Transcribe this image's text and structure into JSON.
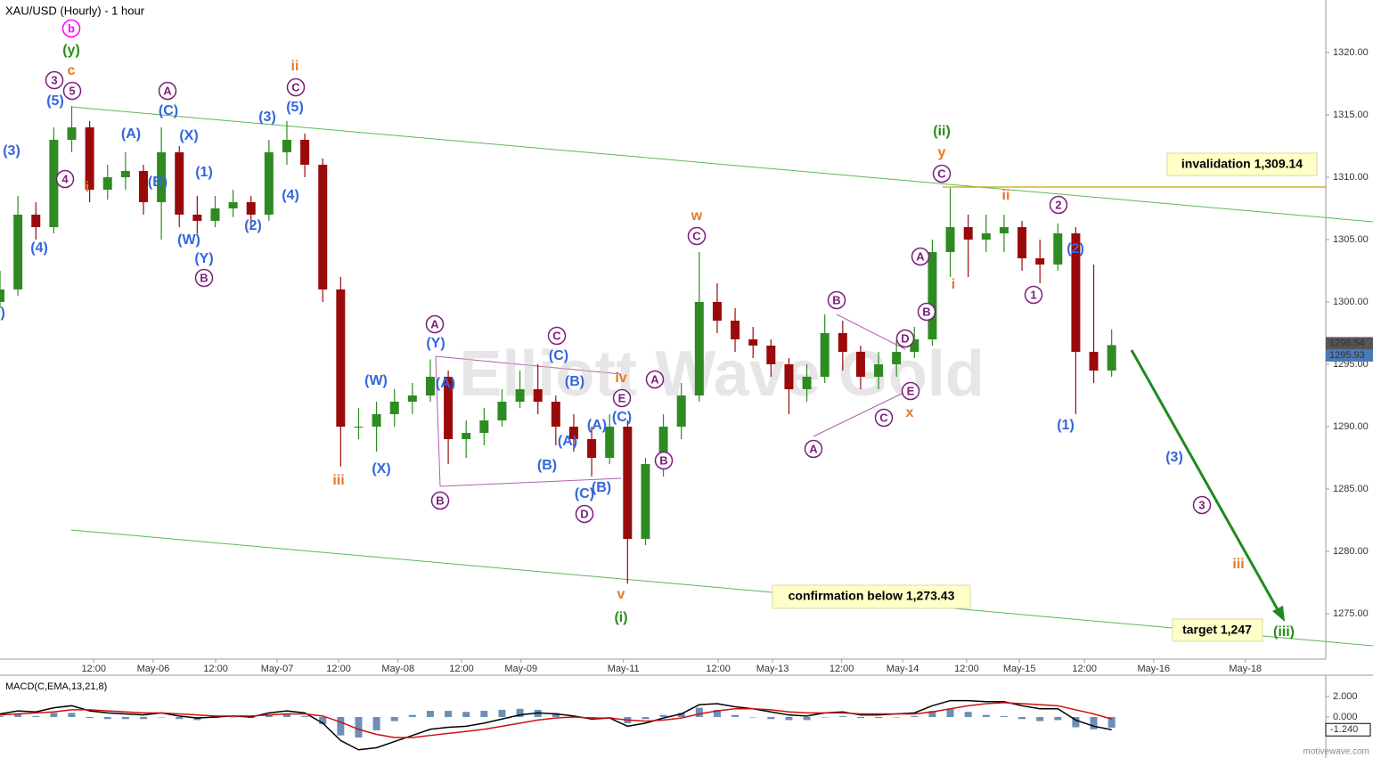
{
  "chart_data": [
    {
      "type": "candlestick",
      "title": "XAU/USD (Hourly) - 1 hour",
      "watermark": "Elliott Wave Gold",
      "up_color": "#2e8b22",
      "down_color": "#9b0a0a",
      "x": [
        0,
        3.5,
        7,
        10.5,
        14,
        17.5,
        21,
        24.5,
        28,
        31.5,
        35,
        38.5,
        42,
        45.5,
        49,
        52.5,
        56,
        59.5,
        63,
        66.5,
        70,
        73.5,
        77,
        80.5,
        84,
        87.5,
        91,
        94.5,
        98,
        101.5,
        105,
        108.5,
        112,
        115.5,
        119,
        122.5,
        126,
        129.5,
        133,
        136.5,
        140,
        143.5,
        147,
        150.5,
        154,
        157.5,
        161,
        164.5,
        168,
        171.5,
        175,
        178.5,
        182,
        185.5,
        189,
        192.5,
        196,
        199.5,
        203,
        206.5,
        210,
        213.5,
        217
      ],
      "open": [
        1300,
        1301,
        1307,
        1306,
        1313,
        1314,
        1309,
        1310,
        1310.5,
        1308,
        1312,
        1307,
        1306.5,
        1307.5,
        1308,
        1307,
        1312,
        1313,
        1311,
        1301,
        1290,
        1290,
        1291,
        1292,
        1292.5,
        1294,
        1289,
        1289.5,
        1290.5,
        1292,
        1293,
        1292,
        1290,
        1289,
        1287.5,
        1290,
        1281,
        1287,
        1290,
        1292.5,
        1300,
        1298.5,
        1297,
        1296.5,
        1295,
        1293,
        1294,
        1297.5,
        1296,
        1294,
        1295,
        1296,
        1297,
        1304,
        1306,
        1305,
        1305.5,
        1306,
        1303.5,
        1303,
        1305.5,
        1296,
        1294.5
      ],
      "high": [
        1302.5,
        1308.5,
        1308,
        1314,
        1315.7,
        1314.5,
        1311,
        1312,
        1311,
        1314,
        1312.5,
        1308.5,
        1308.5,
        1309,
        1308.5,
        1313,
        1314.5,
        1313.5,
        1311.5,
        1302,
        1291.5,
        1292,
        1293,
        1293.5,
        1295.4,
        1294.5,
        1290.5,
        1291.5,
        1293,
        1294.5,
        1295,
        1292.5,
        1291,
        1290,
        1291,
        1290.5,
        1287.5,
        1291,
        1293.5,
        1304,
        1301.5,
        1299.5,
        1298,
        1297,
        1295.5,
        1295,
        1299,
        1298.5,
        1296.5,
        1296,
        1297,
        1298,
        1305,
        1309.14,
        1307,
        1307,
        1307,
        1306.5,
        1305,
        1306.3,
        1306,
        1303,
        1297.8
      ],
      "low": [
        1299.5,
        1300.5,
        1305,
        1305.5,
        1312,
        1308,
        1308.2,
        1309,
        1307,
        1305,
        1306,
        1305.5,
        1306,
        1306.8,
        1306,
        1306.5,
        1311,
        1310,
        1300,
        1286.8,
        1289,
        1288,
        1290,
        1291,
        1292,
        1287,
        1287.5,
        1288.5,
        1290,
        1291.5,
        1291,
        1288.5,
        1288,
        1286,
        1287,
        1277.4,
        1280.5,
        1286,
        1289,
        1292,
        1297.5,
        1296,
        1295.5,
        1294,
        1291,
        1292,
        1293.5,
        1294.5,
        1293,
        1293,
        1294,
        1295.5,
        1296.5,
        1302,
        1302,
        1304,
        1304,
        1302.5,
        1301.5,
        1302.5,
        1291,
        1293.5,
        1294
      ],
      "close": [
        1301,
        1307,
        1306,
        1313,
        1314,
        1309,
        1310,
        1310.5,
        1308,
        1312,
        1307,
        1306.5,
        1307.5,
        1308,
        1307,
        1312,
        1313,
        1311,
        1301,
        1290,
        1290,
        1291,
        1292,
        1292.5,
        1294,
        1289,
        1289.5,
        1290.5,
        1292,
        1293,
        1292,
        1290,
        1289,
        1287.5,
        1290,
        1281,
        1287,
        1290,
        1292.5,
        1300,
        1298.5,
        1297,
        1296.5,
        1295,
        1293,
        1294,
        1297.5,
        1296,
        1294,
        1295,
        1296,
        1297,
        1304,
        1306,
        1305,
        1305.5,
        1306,
        1303.5,
        1303,
        1305.5,
        1296,
        1294.5,
        1296.54
      ],
      "xlim": [
        0,
        258.8
      ],
      "xticks": [
        {
          "value": 18.3,
          "label": "12:00"
        },
        {
          "value": 29.9,
          "label": "May-06"
        },
        {
          "value": 42.1,
          "label": "12:00"
        },
        {
          "value": 54.1,
          "label": "May-07"
        },
        {
          "value": 66.1,
          "label": "12:00"
        },
        {
          "value": 77.7,
          "label": "May-08"
        },
        {
          "value": 90.1,
          "label": "12:00"
        },
        {
          "value": 101.7,
          "label": "May-09"
        },
        {
          "value": 121.7,
          "label": "May-11"
        },
        {
          "value": 140.2,
          "label": "12:00"
        },
        {
          "value": 150.8,
          "label": "May-13"
        },
        {
          "value": 164.3,
          "label": "12:00"
        },
        {
          "value": 176.2,
          "label": "May-14"
        },
        {
          "value": 188.7,
          "label": "12:00"
        },
        {
          "value": 199,
          "label": "May-15"
        },
        {
          "value": 211.7,
          "label": "12:00"
        },
        {
          "value": 225.2,
          "label": "May-16"
        },
        {
          "value": 243.1,
          "label": "May-18"
        }
      ],
      "ylim": [
        1271.36,
        1324.21
      ],
      "yticks": [
        {
          "value": 1275,
          "label": "1275.00"
        },
        {
          "value": 1280,
          "label": "1280.00"
        },
        {
          "value": 1285,
          "label": "1285.00"
        },
        {
          "value": 1290,
          "label": "1290.00"
        },
        {
          "value": 1295,
          "label": "1295.00"
        },
        {
          "value": 1300,
          "label": "1300.00"
        },
        {
          "value": 1305,
          "label": "1305.00"
        },
        {
          "value": 1310,
          "label": "1310.00"
        },
        {
          "value": 1315,
          "label": "1315.00"
        },
        {
          "value": 1320,
          "label": "1320.00"
        }
      ],
      "markers": [
        {
          "value": 1296.54,
          "color": "#555555"
        },
        {
          "value": 1295.93,
          "color": "#4a7ab5"
        }
      ],
      "boxes": [
        "invalidation 1,309.14",
        "confirmation below 1,273.43",
        "target 1,247"
      ],
      "annotations": [
        {
          "text": "b",
          "color": "#ff00ff",
          "circled": true
        },
        {
          "text": "(y)",
          "color": "#2a8a1a",
          "circled": false
        },
        {
          "text": "c",
          "color": "#e87722",
          "circled": false
        },
        {
          "text": "3",
          "color": "#7a1f7a",
          "circled": true
        },
        {
          "text": "5",
          "color": "#7a1f7a",
          "circled": true
        },
        {
          "text": "(5)",
          "color": "#3366dd",
          "circled": false
        },
        {
          "text": "(3)",
          "color": "#3366dd",
          "circled": false
        },
        {
          "text": "4",
          "color": "#7a1f7a",
          "circled": true
        },
        {
          "text": "i",
          "color": "#e87722",
          "circled": false
        },
        {
          "text": "(4)",
          "color": "#3366dd",
          "circled": false
        },
        {
          "text": "(A)",
          "color": "#3366dd",
          "circled": false
        },
        {
          "text": "(B)",
          "color": "#3366dd",
          "circled": false
        },
        {
          "text": "A",
          "color": "#7a1f7a",
          "circled": true
        },
        {
          "text": "(C)",
          "color": "#3366dd",
          "circled": false
        },
        {
          "text": "(X)",
          "color": "#3366dd",
          "circled": false
        },
        {
          "text": "(1)",
          "color": "#3366dd",
          "circled": false
        },
        {
          "text": "(W)",
          "color": "#3366dd",
          "circled": false
        },
        {
          "text": "(Y)",
          "color": "#3366dd",
          "circled": false
        },
        {
          "text": "B",
          "color": "#7a1f7a",
          "circled": true
        },
        {
          "text": "(3)",
          "color": "#3366dd",
          "circled": false
        },
        {
          "text": "ii",
          "color": "#e87722",
          "circled": false
        },
        {
          "text": "C",
          "color": "#7a1f7a",
          "circled": true
        },
        {
          "text": "(5)",
          "color": "#3366dd",
          "circled": false
        },
        {
          "text": "(4)",
          "color": "#3366dd",
          "circled": false
        },
        {
          "text": "(2)",
          "color": "#3366dd",
          "circled": false
        },
        {
          "text": "iii",
          "color": "#e87722",
          "circled": false
        },
        {
          "text": "(W)",
          "color": "#3366dd",
          "circled": false
        },
        {
          "text": "(X)",
          "color": "#3366dd",
          "circled": false
        },
        {
          "text": "A",
          "color": "#7a1f7a",
          "circled": true
        },
        {
          "text": "(Y)",
          "color": "#3366dd",
          "circled": false
        },
        {
          "text": "(A)",
          "color": "#3366dd",
          "circled": false
        },
        {
          "text": "B",
          "color": "#7a1f7a",
          "circled": true
        },
        {
          "text": "C",
          "color": "#7a1f7a",
          "circled": true
        },
        {
          "text": "(C)",
          "color": "#3366dd",
          "circled": false
        },
        {
          "text": "(B)",
          "color": "#3366dd",
          "circled": false
        },
        {
          "text": "(A)",
          "color": "#3366dd",
          "circled": false
        },
        {
          "text": "(B)",
          "color": "#3366dd",
          "circled": false
        },
        {
          "text": "(A)",
          "color": "#3366dd",
          "circled": false
        },
        {
          "text": "(C)",
          "color": "#3366dd",
          "circled": false
        },
        {
          "text": "(B)",
          "color": "#3366dd",
          "circled": false
        },
        {
          "text": "D",
          "color": "#7a1f7a",
          "circled": true
        },
        {
          "text": "iv",
          "color": "#e87722",
          "circled": false
        },
        {
          "text": "E",
          "color": "#7a1f7a",
          "circled": true
        },
        {
          "text": "(C)",
          "color": "#3366dd",
          "circled": false
        },
        {
          "text": "A",
          "color": "#7a1f7a",
          "circled": true
        },
        {
          "text": "B",
          "color": "#7a1f7a",
          "circled": true
        },
        {
          "text": "v",
          "color": "#e87722",
          "circled": false
        },
        {
          "text": "(i)",
          "color": "#2a8a1a",
          "circled": false
        },
        {
          "text": "w",
          "color": "#e87722",
          "circled": false
        },
        {
          "text": "C",
          "color": "#7a1f7a",
          "circled": true
        },
        {
          "text": "B",
          "color": "#7a1f7a",
          "circled": true
        },
        {
          "text": "A",
          "color": "#7a1f7a",
          "circled": true
        },
        {
          "text": "C",
          "color": "#7a1f7a",
          "circled": true
        },
        {
          "text": "D",
          "color": "#7a1f7a",
          "circled": true
        },
        {
          "text": "E",
          "color": "#7a1f7a",
          "circled": true
        },
        {
          "text": "x",
          "color": "#e87722",
          "circled": false
        },
        {
          "text": "A",
          "color": "#7a1f7a",
          "circled": true
        },
        {
          "text": "B",
          "color": "#7a1f7a",
          "circled": true
        },
        {
          "text": "i",
          "color": "#e87722",
          "circled": false
        },
        {
          "text": "(ii)",
          "color": "#2a8a1a",
          "circled": false
        },
        {
          "text": "y",
          "color": "#e87722",
          "circled": false
        },
        {
          "text": "C",
          "color": "#7a1f7a",
          "circled": true
        },
        {
          "text": "ii",
          "color": "#e87722",
          "circled": false
        },
        {
          "text": "2",
          "color": "#7a1f7a",
          "circled": true
        },
        {
          "text": "(2)",
          "color": "#3366dd",
          "circled": false
        },
        {
          "text": "1",
          "color": "#7a1f7a",
          "circled": true
        },
        {
          "text": "(1)",
          "color": "#3366dd",
          "circled": false
        },
        {
          "text": "(3)",
          "color": "#3366dd",
          "circled": false
        },
        {
          "text": "3",
          "color": "#7a1f7a",
          "circled": true
        },
        {
          "text": "iii",
          "color": "#e87722",
          "circled": false
        },
        {
          "text": "(iii)",
          "color": "#2a8a1a",
          "circled": false
        },
        {
          "text": "(2)",
          "color": "#3366dd",
          "circled": false
        }
      ]
    },
    {
      "type": "macd",
      "title": "MACD(C,EMA,13,21,8)",
      "x": [
        0,
        3.5,
        7,
        10.5,
        14,
        17.5,
        21,
        24.5,
        28,
        31.5,
        35,
        38.5,
        42,
        45.5,
        49,
        52.5,
        56,
        59.5,
        63,
        66.5,
        70,
        73.5,
        77,
        80.5,
        84,
        87.5,
        91,
        94.5,
        98,
        101.5,
        105,
        108.5,
        112,
        115.5,
        119,
        122.5,
        126,
        129.5,
        133,
        136.5,
        140,
        143.5,
        147,
        150.5,
        154,
        157.5,
        161,
        164.5,
        168,
        171.5,
        175,
        178.5,
        182,
        185.5,
        189,
        192.5,
        196,
        199.5,
        203,
        206.5,
        210,
        213.5,
        217
      ],
      "series": [
        {
          "type": "bar",
          "color": "#6a8fb8",
          "values": [
            0.1,
            0.3,
            0.1,
            0.4,
            0.4,
            -0.1,
            -0.2,
            -0.2,
            -0.2,
            0,
            -0.2,
            -0.3,
            -0.1,
            0,
            -0.1,
            0.2,
            0.3,
            0.1,
            -0.7,
            -1.8,
            -2.0,
            -1.3,
            -0.4,
            0.2,
            0.6,
            0.6,
            0.5,
            0.6,
            0.7,
            0.8,
            0.7,
            0.4,
            0.1,
            -0.1,
            0,
            -0.6,
            -0.2,
            0.2,
            0.4,
            0.9,
            0.7,
            0.2,
            0,
            -0.2,
            -0.3,
            -0.3,
            0,
            0.1,
            -0.1,
            -0.1,
            0,
            0.1,
            0.6,
            0.8,
            0.5,
            0.2,
            0.1,
            -0.2,
            -0.4,
            -0.3,
            -1.0,
            -1.2,
            -1.04
          ]
        },
        {
          "type": "line",
          "color": "#000000",
          "values": [
            0.3,
            0.6,
            0.5,
            0.9,
            1.1,
            0.6,
            0.4,
            0.3,
            0.2,
            0.4,
            0.1,
            -0.1,
            0,
            0.1,
            0,
            0.4,
            0.6,
            0.4,
            -0.6,
            -2.3,
            -3.2,
            -3.0,
            -2.4,
            -1.8,
            -1.2,
            -1.0,
            -0.9,
            -0.6,
            -0.2,
            0.2,
            0.4,
            0.3,
            0.1,
            -0.2,
            -0.1,
            -0.9,
            -0.6,
            -0.1,
            0.3,
            1.2,
            1.3,
            1.0,
            0.8,
            0.5,
            0.2,
            0.1,
            0.4,
            0.5,
            0.2,
            0.2,
            0.3,
            0.4,
            1.1,
            1.6,
            1.6,
            1.5,
            1.5,
            1.1,
            0.8,
            0.8,
            -0.3,
            -0.9,
            -1.24
          ]
        },
        {
          "type": "line",
          "color": "#cc1111",
          "values": [
            0.2,
            0.3,
            0.4,
            0.5,
            0.7,
            0.7,
            0.6,
            0.5,
            0.4,
            0.4,
            0.3,
            0.2,
            0.1,
            0.1,
            0.1,
            0.2,
            0.3,
            0.3,
            0.1,
            -0.5,
            -1.2,
            -1.7,
            -2.0,
            -2.0,
            -1.8,
            -1.6,
            -1.4,
            -1.2,
            -0.9,
            -0.6,
            -0.3,
            -0.1,
            0,
            -0.1,
            -0.1,
            -0.3,
            -0.4,
            -0.3,
            -0.1,
            0.3,
            0.6,
            0.8,
            0.8,
            0.7,
            0.5,
            0.4,
            0.4,
            0.4,
            0.3,
            0.3,
            0.3,
            0.3,
            0.5,
            0.8,
            1.1,
            1.3,
            1.4,
            1.3,
            1.2,
            1.1,
            0.7,
            0.3,
            -0.2
          ]
        }
      ],
      "ylim": [
        -3.74,
        3.91
      ],
      "yticks": [
        {
          "value": 2,
          "label": "2.000"
        },
        {
          "value": 0,
          "label": "0.000"
        }
      ],
      "last_value": {
        "value": -1.24,
        "label": "-1.240"
      }
    }
  ],
  "footer": "motivewave.com"
}
